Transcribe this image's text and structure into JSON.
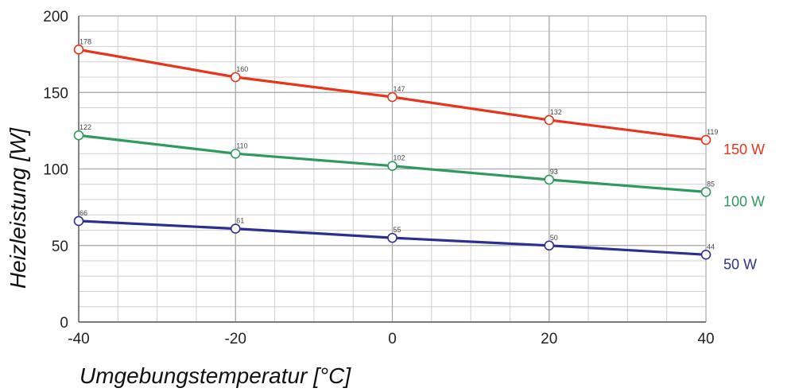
{
  "chart_data": {
    "type": "line",
    "title": "",
    "xlabel": "Umgebungstemperatur [°C]",
    "ylabel": "Heizleistung [W]",
    "x": [
      -40,
      -20,
      0,
      20,
      40
    ],
    "xlim": [
      -40,
      40
    ],
    "ylim": [
      0,
      200
    ],
    "x_ticks": [
      -40,
      -20,
      0,
      20,
      40
    ],
    "y_ticks": [
      0,
      50,
      100,
      150,
      200
    ],
    "grid": true,
    "legend": "series labels at right end of lines",
    "series": [
      {
        "name": "150 W",
        "color": "#e8341c",
        "values": [
          178,
          160,
          147,
          132,
          119
        ],
        "point_labels": [
          "178",
          "160",
          "147",
          "132",
          "119"
        ]
      },
      {
        "name": "100 W",
        "color": "#2f9a5c",
        "values": [
          122,
          110,
          102,
          93,
          85
        ],
        "point_labels": [
          "122",
          "110",
          "102",
          "93",
          "85"
        ]
      },
      {
        "name": "50 W",
        "color": "#2b2f8f",
        "values": [
          66,
          61,
          55,
          50,
          44
        ],
        "point_labels": [
          "66",
          "61",
          "55",
          "50",
          "44"
        ]
      }
    ]
  }
}
